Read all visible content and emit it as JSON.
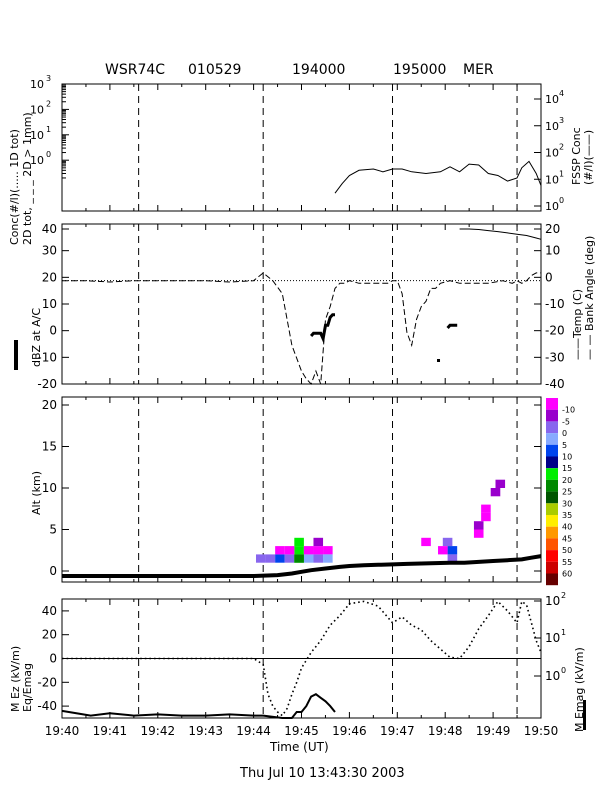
{
  "header": {
    "aircraft": "WSR74C",
    "date_code": "010529",
    "time_start": "194000",
    "time_end": "195000",
    "region": "MER"
  },
  "footer": "Thu Jul 10 13:43:30 2003",
  "xaxis": {
    "label": "Time (UT)",
    "ticks": [
      "19:40",
      "19:41",
      "19:42",
      "19:43",
      "19:44",
      "19:45",
      "19:46",
      "19:47",
      "19:48",
      "19:49",
      "19:50"
    ],
    "range_min": [
      0,
      10
    ],
    "dashed_lines_min": [
      1.6,
      4.2,
      6.9,
      9.5
    ]
  },
  "colors": {
    "axis": "#000000",
    "bar": [
      "#ff00ff",
      "#9900cc",
      "#8866ee",
      "#88aaff",
      "#0044ee",
      "#000088",
      "#00ee00",
      "#008800",
      "#005500",
      "#aacc00",
      "#ffee00",
      "#ff9900",
      "#ff5500",
      "#ff0000",
      "#cc0000",
      "#660000"
    ]
  },
  "chart_data": [
    {
      "type": "line",
      "panel": "concentration",
      "ylabel_left": "Conc(#/l)(..... 1D tot)",
      "ylabel_left2": "2D tot, _ _ _ 2D > 1mm)",
      "ylabel_right": "FSSP Conc",
      "ylabel_right2": "(#/l)(——)",
      "yscale": "log",
      "ylim": [
        0.01,
        1000
      ],
      "yticks_left": [
        "10",
        "10",
        "10",
        "10"
      ],
      "yticks_left_exp": [
        "3",
        "2",
        "1",
        "0"
      ],
      "yticks_right": [
        "10",
        "10",
        "10",
        "10",
        "10"
      ],
      "yticks_right_exp": [
        "4",
        "3",
        "2",
        "1",
        "0"
      ],
      "series": [
        {
          "style": "solid",
          "x": [
            5.7,
            5.85,
            6.0,
            6.2,
            6.5,
            6.7,
            6.9,
            7.1,
            7.3,
            7.6,
            7.9,
            8.1,
            8.3,
            8.5,
            8.7,
            8.9,
            9.1,
            9.3,
            9.5,
            9.6,
            9.75,
            9.9,
            10.0
          ],
          "y": [
            0.05,
            0.12,
            0.25,
            0.4,
            0.45,
            0.35,
            0.45,
            0.45,
            0.35,
            0.3,
            0.35,
            0.55,
            0.35,
            0.7,
            0.65,
            0.3,
            0.25,
            0.15,
            0.2,
            0.5,
            0.9,
            0.3,
            0.1
          ]
        }
      ]
    },
    {
      "type": "line",
      "panel": "reflectivity",
      "ylabel_left": "dBZ at A/C",
      "ylabel_right": "——Temp (C)",
      "ylabel_right2": "— — Bank Angle (deg)",
      "ylim": [
        -20,
        40
      ],
      "yticks_left": [
        "40",
        "30",
        "20",
        "10",
        "0",
        "-10",
        "-20"
      ],
      "yticks_right": [
        "20",
        "10",
        "0",
        "-10",
        "-20",
        "-30",
        "-40"
      ],
      "series": [
        {
          "name_hidden": "bank",
          "style": "dashed",
          "x": [
            0,
            0.5,
            1,
            1.5,
            2,
            2.5,
            3,
            3.5,
            4,
            4.2,
            4.4,
            4.6,
            4.8,
            5.0,
            5.1,
            5.2,
            5.3,
            5.4,
            5.5,
            5.6,
            5.7,
            5.8,
            5.9,
            6.0,
            6.2,
            6.5,
            6.8,
            6.9,
            7.0,
            7.1,
            7.2,
            7.3,
            7.4,
            7.5,
            7.6,
            7.7,
            7.8,
            7.9,
            8.1,
            8.3,
            8.6,
            8.9,
            9.2,
            9.4,
            9.5,
            9.6,
            9.7,
            9.8,
            9.9,
            10.0
          ],
          "y": [
            0,
            0,
            -0.5,
            0,
            0,
            0,
            0,
            -0.5,
            0,
            3,
            0,
            -5,
            -25,
            -35,
            -38,
            -40,
            -35,
            -40,
            -15,
            -10,
            -3,
            -1,
            -1,
            0,
            -1,
            -1,
            -1,
            0,
            0,
            -5,
            -20,
            -25,
            -15,
            -10,
            -8,
            -3,
            -3,
            -1,
            0,
            -1,
            -1,
            -1,
            0,
            -1,
            0,
            -1,
            0,
            2,
            3,
            3
          ]
        },
        {
          "name_hidden": "dbz",
          "style": "thick",
          "x": [
            5.2,
            5.25,
            5.35,
            5.4,
            5.45,
            5.5,
            5.55,
            5.6,
            5.65,
            5.7
          ],
          "y": [
            -2,
            -1,
            -1,
            -1,
            -3,
            2,
            2,
            5,
            6,
            6
          ]
        },
        {
          "name_hidden": "dbz2",
          "style": "thick",
          "x": [
            8.05,
            8.1,
            8.2,
            8.25
          ],
          "y": [
            1,
            2,
            2,
            2
          ]
        },
        {
          "name_hidden": "temp",
          "style": "solid",
          "x": [
            8.3,
            8.5,
            8.7,
            8.9,
            9.1,
            9.3,
            9.5,
            9.7,
            9.9,
            10.0
          ],
          "y": [
            20,
            20,
            19.8,
            19.4,
            19,
            18.5,
            18,
            17.5,
            16.5,
            16
          ]
        }
      ]
    },
    {
      "type": "heatmap",
      "panel": "radar",
      "ylabel": "Alt (km)",
      "ylim": [
        0,
        20
      ],
      "yticks": [
        "20",
        "15",
        "10",
        "5",
        "0"
      ],
      "legend_labels": [
        "-10",
        "-5",
        "0",
        "5",
        "10",
        "15",
        "20",
        "25",
        "30",
        "35",
        "40",
        "45",
        "50",
        "55",
        "60"
      ],
      "altitude_line": {
        "x": [
          0,
          0.5,
          1,
          1.5,
          2,
          2.5,
          3,
          3.5,
          4,
          4.5,
          4.8,
          5.0,
          5.2,
          5.5,
          5.8,
          6.0,
          6.3,
          6.6,
          6.9,
          7.2,
          7.5,
          7.8,
          8.1,
          8.4,
          8.7,
          9.0,
          9.3,
          9.6,
          9.8,
          10.0
        ],
        "y": [
          -0.6,
          -0.6,
          -0.6,
          -0.6,
          -0.6,
          -0.6,
          -0.6,
          -0.6,
          -0.6,
          -0.5,
          -0.3,
          -0.1,
          0.1,
          0.3,
          0.5,
          0.6,
          0.7,
          0.75,
          0.8,
          0.85,
          0.9,
          0.95,
          1.0,
          1.0,
          1.1,
          1.2,
          1.3,
          1.4,
          1.6,
          1.8
        ]
      },
      "cells": [
        {
          "x": 4.15,
          "y": 1.5,
          "c": "#8866ee"
        },
        {
          "x": 4.35,
          "y": 1.5,
          "c": "#8866ee"
        },
        {
          "x": 4.55,
          "y": 1.5,
          "c": "#0044ee"
        },
        {
          "x": 4.75,
          "y": 1.5,
          "c": "#8866ee"
        },
        {
          "x": 4.95,
          "y": 1.5,
          "c": "#00ee00"
        },
        {
          "x": 5.15,
          "y": 1.5,
          "c": "#88aaff"
        },
        {
          "x": 5.35,
          "y": 1.5,
          "c": "#8866ee"
        },
        {
          "x": 4.95,
          "y": 2.5,
          "c": "#00ee00"
        },
        {
          "x": 5.35,
          "y": 2.5,
          "c": "#ff00ff"
        },
        {
          "x": 4.95,
          "y": 3.5,
          "c": "#00ee00"
        },
        {
          "x": 5.35,
          "y": 3.5,
          "c": "#9900cc"
        },
        {
          "x": 4.75,
          "y": 2.5,
          "c": "#ff00ff"
        },
        {
          "x": 5.55,
          "y": 2.5,
          "c": "#ff00ff"
        },
        {
          "x": 5.15,
          "y": 2.5,
          "c": "#ff00ff"
        },
        {
          "x": 4.55,
          "y": 2.5,
          "c": "#ff00ff"
        },
        {
          "x": 4.95,
          "y": 1.5,
          "c": "#008800"
        },
        {
          "x": 5.55,
          "y": 1.5,
          "c": "#88aaff"
        },
        {
          "x": 8.05,
          "y": 3.5,
          "c": "#8866ee"
        },
        {
          "x": 8.15,
          "y": 2.5,
          "c": "#0044ee"
        },
        {
          "x": 8.15,
          "y": 1.5,
          "c": "#8866ee"
        },
        {
          "x": 7.95,
          "y": 2.5,
          "c": "#ff00ff"
        },
        {
          "x": 8.7,
          "y": 5.5,
          "c": "#9900cc"
        },
        {
          "x": 8.7,
          "y": 4.5,
          "c": "#ff00ff"
        },
        {
          "x": 8.85,
          "y": 7.5,
          "c": "#ff00ff"
        },
        {
          "x": 8.85,
          "y": 6.5,
          "c": "#ff00ff"
        },
        {
          "x": 9.15,
          "y": 10.5,
          "c": "#9900cc"
        },
        {
          "x": 9.05,
          "y": 9.5,
          "c": "#9900cc"
        },
        {
          "x": 7.6,
          "y": 3.5,
          "c": "#ff00ff"
        }
      ]
    },
    {
      "type": "line",
      "panel": "efield",
      "ylabel_left": "M Ez (kV/m)",
      "ylabel_left2": "Eq/Emag",
      "ylabel_right": "M Emag (kV/m)",
      "ylim": [
        -50,
        50
      ],
      "yticks_left": [
        "40",
        "20",
        "0",
        "-20",
        "-40"
      ],
      "yticks_right": [
        "10",
        "10",
        "10"
      ],
      "yticks_right_exp": [
        "2",
        "1",
        "0"
      ],
      "series": [
        {
          "name_hidden": "emag",
          "style": "dotted",
          "x": [
            0,
            1,
            2,
            3,
            4,
            4.2,
            4.3,
            4.4,
            4.5,
            4.6,
            4.7,
            4.8,
            4.9,
            5.0,
            5.2,
            5.4,
            5.6,
            5.8,
            6.0,
            6.3,
            6.6,
            6.9,
            7.1,
            7.3,
            7.5,
            7.7,
            7.9,
            8.1,
            8.3,
            8.5,
            8.7,
            8.9,
            9.1,
            9.3,
            9.5,
            9.6,
            9.7,
            9.8,
            9.9,
            10.0
          ],
          "y": [
            0,
            0,
            0,
            0,
            0,
            -5,
            -30,
            -40,
            -45,
            -48,
            -42,
            -30,
            -20,
            -8,
            5,
            15,
            28,
            36,
            46,
            48,
            44,
            30,
            35,
            28,
            24,
            15,
            8,
            1,
            0,
            10,
            25,
            36,
            48,
            40,
            30,
            48,
            45,
            30,
            15,
            5
          ]
        },
        {
          "name_hidden": "ez",
          "style": "solid",
          "x": [
            0,
            0.3,
            0.6,
            1.0,
            1.5,
            2.0,
            2.5,
            3.0,
            3.5,
            4.0,
            4.2,
            4.6,
            4.8,
            4.9,
            5.0,
            5.1,
            5.2,
            5.3,
            5.4,
            5.5,
            5.6,
            5.7
          ],
          "y": [
            -44,
            -46,
            -48,
            -46,
            -48,
            -47,
            -48,
            -48,
            -47,
            -48,
            -48,
            -50,
            -50,
            -45,
            -45,
            -40,
            -32,
            -30,
            -33,
            -36,
            -40,
            -45
          ]
        }
      ]
    }
  ]
}
